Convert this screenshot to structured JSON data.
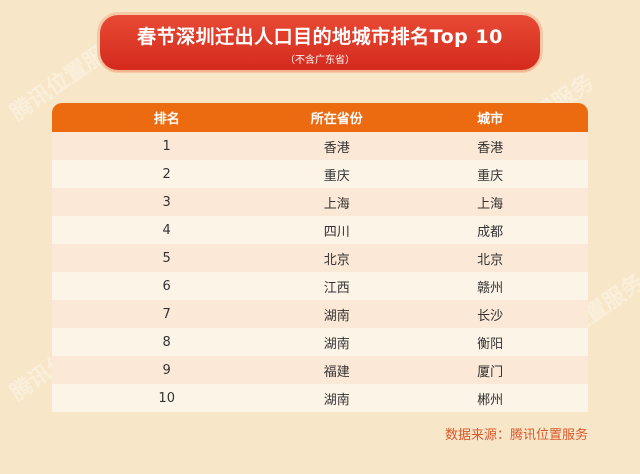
{
  "title": "春节深圳迁出人口目的地城市排名Top 10",
  "subtitle": "（不含广东省）",
  "table": {
    "headers": [
      "排名",
      "所在省份",
      "城市"
    ],
    "rows": [
      [
        "1",
        "香港",
        "香港"
      ],
      [
        "2",
        "重庆",
        "重庆"
      ],
      [
        "3",
        "上海",
        "上海"
      ],
      [
        "4",
        "四川",
        "成都"
      ],
      [
        "5",
        "北京",
        "北京"
      ],
      [
        "6",
        "江西",
        "赣州"
      ],
      [
        "7",
        "湖南",
        "长沙"
      ],
      [
        "8",
        "湖南",
        "衡阳"
      ],
      [
        "9",
        "福建",
        "厦门"
      ],
      [
        "10",
        "湖南",
        "郴州"
      ]
    ]
  },
  "source": "数据来源：腾讯位置服务",
  "watermark": "腾讯位置服务",
  "colors": {
    "banner": "#d42a1e",
    "header": "#ec6a10",
    "background": "#f8e6c8",
    "source_text": "#d8582a"
  }
}
